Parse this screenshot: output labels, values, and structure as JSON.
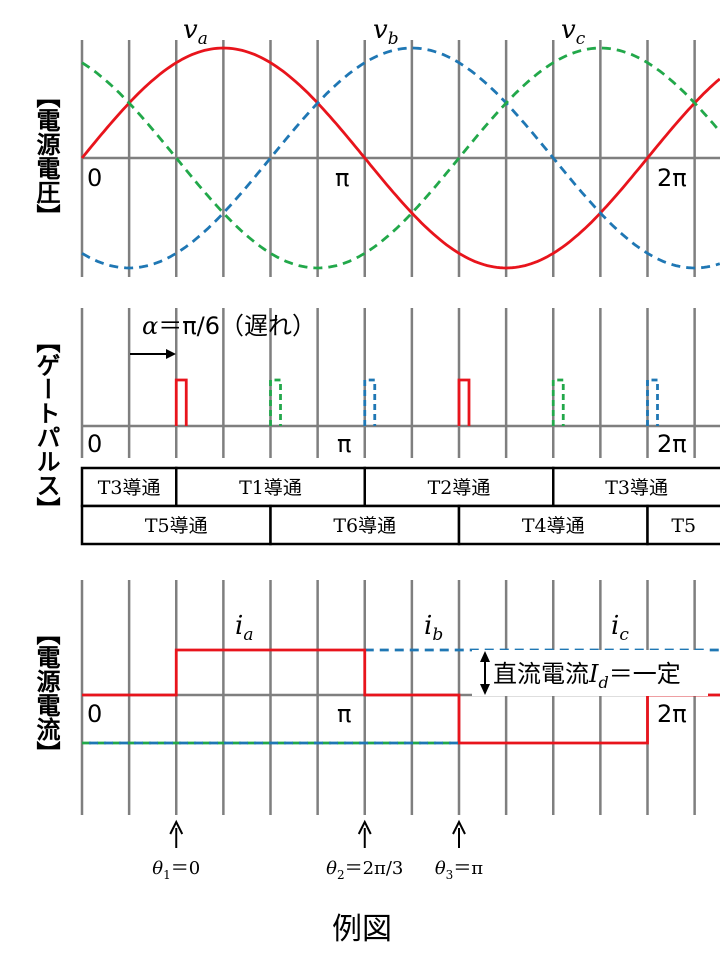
{
  "colors": {
    "phase_a": "#e8141c",
    "phase_b": "#1f77b4",
    "phase_c": "#22a84a",
    "grid": "#7f7f7f",
    "text": "#000000"
  },
  "voltage_panel": {
    "side_label": "【電源電圧】",
    "phase_labels": {
      "a": "v",
      "a_sub": "a",
      "b": "v",
      "b_sub": "b",
      "c": "v",
      "c_sub": "c"
    },
    "axis_labels": {
      "zero": "0",
      "pi": "π",
      "two_pi": "2π"
    }
  },
  "gate_panel": {
    "side_label": "【ゲートパルス】",
    "alpha_symbol": "α",
    "alpha_text": "＝π/6（遅れ）",
    "axis_labels": {
      "zero": "0",
      "pi": "π",
      "two_pi": "2π"
    },
    "pulses": [
      {
        "phase": "a",
        "angle_deg": 60
      },
      {
        "phase": "c",
        "angle_deg": 120
      },
      {
        "phase": "b",
        "angle_deg": 180
      },
      {
        "phase": "a",
        "angle_deg": 240
      },
      {
        "phase": "c",
        "angle_deg": 300
      },
      {
        "phase": "b",
        "angle_deg": 360
      }
    ]
  },
  "conduction_table": {
    "upper_row": [
      {
        "label": "T3導通",
        "start_deg": -30,
        "end_deg": 60
      },
      {
        "label": "T1導通",
        "start_deg": 60,
        "end_deg": 180
      },
      {
        "label": "T2導通",
        "start_deg": 180,
        "end_deg": 300
      },
      {
        "label": "T3導通",
        "start_deg": 300,
        "end_deg": 420
      }
    ],
    "lower_row": [
      {
        "label": "T5導通",
        "start_deg": -30,
        "end_deg": 120
      },
      {
        "label": "T6導通",
        "start_deg": 120,
        "end_deg": 240
      },
      {
        "label": "T4導通",
        "start_deg": 240,
        "end_deg": 360
      },
      {
        "label": "T5",
        "start_deg": 360,
        "end_deg": 420
      }
    ]
  },
  "current_panel": {
    "side_label": "【電源電流】",
    "phase_labels": {
      "a": "i",
      "a_sub": "a",
      "b": "i",
      "b_sub": "b",
      "c": "i",
      "c_sub": "c"
    },
    "axis_labels": {
      "zero": "0",
      "pi": "π",
      "two_pi": "2π"
    },
    "dc_label_prefix": "直流電流",
    "dc_symbol": "I",
    "dc_sub": "d",
    "dc_label_suffix": "＝一定"
  },
  "theta_markers": [
    {
      "sym": "θ",
      "sub": "1",
      "value": "＝0",
      "angle_deg": 60
    },
    {
      "sym": "θ",
      "sub": "2",
      "value": "＝2π/3",
      "angle_deg": 180
    },
    {
      "sym": "θ",
      "sub": "3",
      "value": "＝π",
      "angle_deg": 240
    }
  ],
  "caption": "例図"
}
